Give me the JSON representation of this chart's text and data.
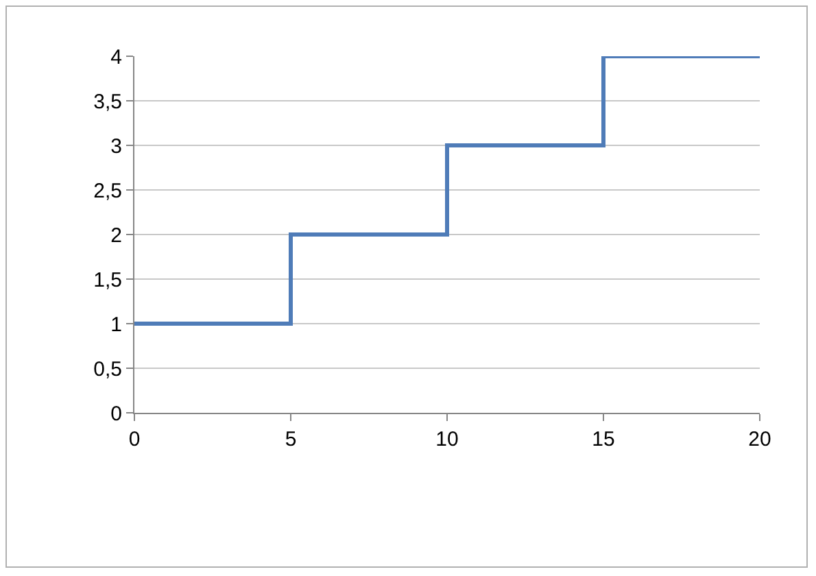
{
  "chart_data": {
    "type": "step",
    "x": [
      0,
      5,
      10,
      15,
      20
    ],
    "series": [
      {
        "color": "#4f7cb8",
        "values": [
          1,
          2,
          3,
          4,
          4
        ]
      }
    ],
    "xlim": [
      0,
      20
    ],
    "xticks": [
      0,
      5,
      10,
      15,
      20
    ],
    "ylim": [
      0,
      4
    ],
    "yticks": [
      0,
      {
        "value": 0.5,
        "label": "0,5"
      },
      1,
      {
        "value": 1.5,
        "label": "1,5"
      },
      2,
      {
        "value": 2.5,
        "label": "2,5"
      },
      3,
      {
        "value": 3.5,
        "label": "3,5"
      },
      4
    ],
    "grid": "y"
  }
}
